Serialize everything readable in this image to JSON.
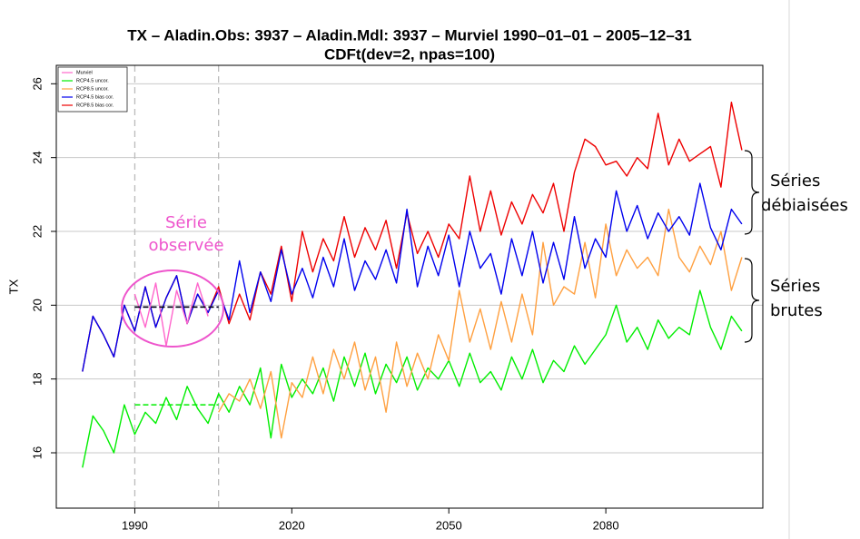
{
  "chart_data": {
    "type": "line",
    "title": "TX – Aladin.Obs: 3937 – Aladin.Mdl: 3937 – Murviel 1990–01–01 – 2005–12–31",
    "subtitle": "CDFt(dev=2, npas=100)",
    "ylabel": "TX",
    "x": [
      1980,
      1982,
      1984,
      1986,
      1988,
      1990,
      1992,
      1994,
      1996,
      1998,
      2000,
      2002,
      2004,
      2006,
      2008,
      2010,
      2012,
      2014,
      2016,
      2018,
      2020,
      2022,
      2024,
      2026,
      2028,
      2030,
      2032,
      2034,
      2036,
      2038,
      2040,
      2042,
      2044,
      2046,
      2048,
      2050,
      2052,
      2054,
      2056,
      2058,
      2060,
      2062,
      2064,
      2066,
      2068,
      2070,
      2072,
      2074,
      2076,
      2078,
      2080,
      2082,
      2084,
      2086,
      2088,
      2090,
      2092,
      2094,
      2096,
      2098,
      2100,
      2102,
      2104,
      2106
    ],
    "series": [
      {
        "name": "Murviel",
        "color": "#ff66cc",
        "x": [
          1990,
          1992,
          1994,
          1996,
          1998,
          2000,
          2002,
          2004
        ],
        "values": [
          20.3,
          19.4,
          20.6,
          18.9,
          20.4,
          19.5,
          20.6,
          19.7
        ]
      },
      {
        "name": "RCP4.5 uncor.",
        "color": "#00ee00",
        "values": [
          15.6,
          17.0,
          16.6,
          16.0,
          17.3,
          16.5,
          17.1,
          16.8,
          17.5,
          16.9,
          17.8,
          17.2,
          16.8,
          17.6,
          17.1,
          17.8,
          17.3,
          18.3,
          16.4,
          18.4,
          17.5,
          18.0,
          17.6,
          18.3,
          17.4,
          18.6,
          17.8,
          18.7,
          17.6,
          18.4,
          17.9,
          18.6,
          17.7,
          18.3,
          18.0,
          18.5,
          17.8,
          18.7,
          17.9,
          18.2,
          17.7,
          18.6,
          18.0,
          18.8,
          17.9,
          18.5,
          18.2,
          18.9,
          18.4,
          18.8,
          19.2,
          20.0,
          19.0,
          19.4,
          18.8,
          19.6,
          19.1,
          19.4,
          19.2,
          20.4,
          19.4,
          18.8,
          19.7,
          19.3
        ]
      },
      {
        "name": "RCP8.5 uncor.",
        "color": "#ffa040",
        "x": [
          2006,
          2008,
          2010,
          2012,
          2014,
          2016,
          2018,
          2020,
          2022,
          2024,
          2026,
          2028,
          2030,
          2032,
          2034,
          2036,
          2038,
          2040,
          2042,
          2044,
          2046,
          2048,
          2050,
          2052,
          2054,
          2056,
          2058,
          2060,
          2062,
          2064,
          2066,
          2068,
          2070,
          2072,
          2074,
          2076,
          2078,
          2080,
          2082,
          2084,
          2086,
          2088,
          2090,
          2092,
          2094,
          2096,
          2098,
          2100,
          2102,
          2104,
          2106
        ],
        "values": [
          17.1,
          17.6,
          17.4,
          18.0,
          17.2,
          18.2,
          16.4,
          17.9,
          17.5,
          18.6,
          17.6,
          18.8,
          18.0,
          19.0,
          17.7,
          18.6,
          17.1,
          19.0,
          17.8,
          18.7,
          18.0,
          19.2,
          18.5,
          20.4,
          19.0,
          19.9,
          18.8,
          20.1,
          19.0,
          20.3,
          19.2,
          21.7,
          20.0,
          20.5,
          20.3,
          21.7,
          20.2,
          22.2,
          20.8,
          21.5,
          21.0,
          21.3,
          20.8,
          22.6,
          21.3,
          20.9,
          21.6,
          21.1,
          22.0,
          20.4,
          21.3
        ]
      },
      {
        "name": "RCP4.5 bias cor.",
        "color": "#0000ee",
        "values": [
          18.2,
          19.7,
          19.2,
          18.6,
          20.0,
          19.3,
          20.5,
          19.4,
          20.2,
          20.8,
          19.5,
          20.3,
          19.8,
          20.4,
          19.6,
          21.2,
          19.8,
          20.9,
          20.1,
          21.5,
          20.3,
          21.0,
          20.2,
          21.3,
          20.5,
          21.8,
          20.4,
          21.2,
          20.7,
          21.5,
          20.6,
          22.6,
          20.5,
          21.6,
          20.8,
          21.9,
          20.5,
          22.0,
          21.0,
          21.4,
          20.3,
          21.8,
          20.8,
          22.0,
          20.6,
          21.7,
          20.7,
          22.4,
          21.0,
          21.8,
          21.3,
          23.1,
          22.0,
          22.7,
          21.8,
          22.5,
          22.0,
          22.4,
          21.9,
          23.3,
          22.1,
          21.5,
          22.6,
          22.2
        ]
      },
      {
        "name": "RCP8.5 bias cor.",
        "color": "#ee0000",
        "values": [
          18.2,
          19.7,
          19.2,
          18.6,
          20.0,
          19.3,
          20.5,
          19.4,
          20.2,
          20.8,
          19.5,
          20.3,
          19.8,
          20.5,
          19.5,
          20.3,
          19.6,
          20.9,
          20.3,
          21.6,
          20.1,
          22.0,
          20.9,
          21.8,
          21.2,
          22.4,
          21.3,
          22.1,
          21.5,
          22.3,
          21.0,
          22.5,
          21.4,
          22.0,
          21.3,
          22.2,
          21.8,
          23.5,
          22.0,
          23.1,
          21.9,
          22.8,
          22.2,
          23.0,
          22.5,
          23.3,
          22.0,
          23.6,
          24.5,
          24.3,
          23.8,
          23.9,
          23.5,
          24.0,
          23.7,
          25.2,
          23.8,
          24.5,
          23.9,
          24.1,
          24.3,
          23.2,
          25.5,
          24.2
        ]
      }
    ],
    "hlines": [
      {
        "value": 17.3,
        "color": "#00ee00",
        "from": 1990,
        "to": 2006
      },
      {
        "value": 19.95,
        "color": "#0000ee",
        "from": 1990,
        "to": 2006
      },
      {
        "value": 19.95,
        "color": "#000000",
        "from": 1990,
        "to": 2006
      }
    ],
    "vlines": [
      1990,
      2006
    ],
    "xlim": [
      1975,
      2110
    ],
    "xticks": [
      1990,
      2020,
      2050,
      2080
    ],
    "ylim": [
      14.5,
      26.5
    ],
    "yticks": [
      16,
      18,
      20,
      22,
      24,
      26
    ],
    "grid": "y",
    "legend": "top-left",
    "annotations": [
      {
        "lines": [
          "Série",
          "observée"
        ],
        "color": "#ee55cc"
      },
      {
        "lines": [
          "Séries",
          "débiaisées"
        ],
        "color": "#000000"
      },
      {
        "lines": [
          "Séries",
          "brutes"
        ],
        "color": "#000000"
      }
    ]
  }
}
